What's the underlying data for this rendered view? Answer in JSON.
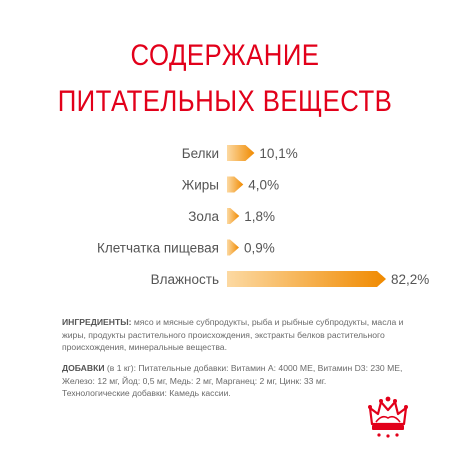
{
  "colors": {
    "title": "#e2001a",
    "bar_light": "#fcd9a2",
    "bar_dark": "#f08a00",
    "text_label": "#555555",
    "text_body": "#6a6a6a",
    "logo": "#e2001a"
  },
  "title": {
    "line1": "СОДЕРЖАНИЕ",
    "line2": "ПИТАТЕЛЬНЫХ ВЕЩЕСТВ"
  },
  "chart_data": {
    "type": "bar",
    "orientation": "horizontal",
    "categories": [
      "Белки",
      "Жиры",
      "Зола",
      "Клетчатка пищевая",
      "Влажность"
    ],
    "values": [
      10.1,
      4.0,
      1.8,
      0.9,
      82.2
    ],
    "value_labels": [
      "10,1%",
      "4,0%",
      "1,8%",
      "0,9%",
      "82,2%"
    ],
    "unit": "%",
    "title": "СОДЕРЖАНИЕ ПИТАТЕЛЬНЫХ ВЕЩЕСТВ",
    "xlim": [
      0,
      82.2
    ],
    "grid": false,
    "legend": "none"
  },
  "ingredients": {
    "label": "ИНГРЕДИЕНТЫ:",
    "lines": [
      "мясо и мясные субпродукты, рыба и рыбные субпродукты, масла и",
      "жиры, продукты растительного происхождения, экстракты белков растительного",
      "происхождения, минеральные вещества."
    ]
  },
  "additives": {
    "label": "ДОБАВКИ",
    "lines": [
      "(в 1 кг): Питательные добавки: Витамин А: 4000 МЕ, Витамин D3: 230 МЕ,",
      "Железо: 12 мг, Йод: 0,5 мг, Медь: 2 мг, Марганец: 2 мг, Цинк: 33 мг.",
      "Технологические добавки: Камедь кассии."
    ]
  },
  "logo": {
    "icon": "royal-canin-crown-icon"
  }
}
